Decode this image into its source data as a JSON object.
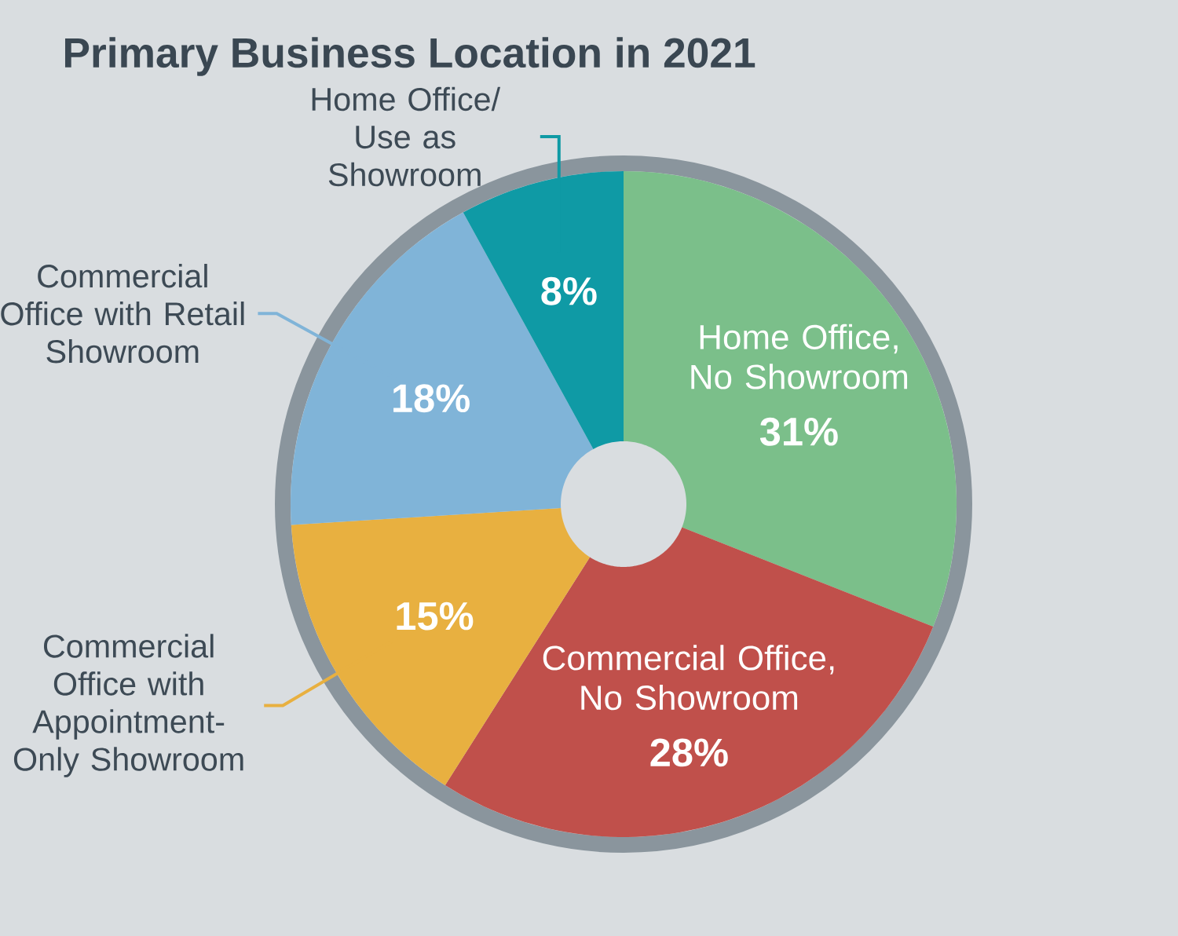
{
  "chart_data": {
    "type": "donut",
    "title": "Primary Business Location in 2021",
    "categories": [
      "Home Office, No Showroom",
      "Commercial Office, No Showroom",
      "Commercial Office with Appointment-Only Showroom",
      "Commercial Office with Retail Showroom",
      "Home Office/ Use as Showroom"
    ],
    "values": [
      31,
      28,
      15,
      18,
      8
    ],
    "value_labels": [
      "31%",
      "28%",
      "15%",
      "18%",
      "8%"
    ],
    "colors": [
      "#7bbf8a",
      "#c0504b",
      "#e8b040",
      "#80b4d8",
      "#0f9aa5"
    ]
  }
}
